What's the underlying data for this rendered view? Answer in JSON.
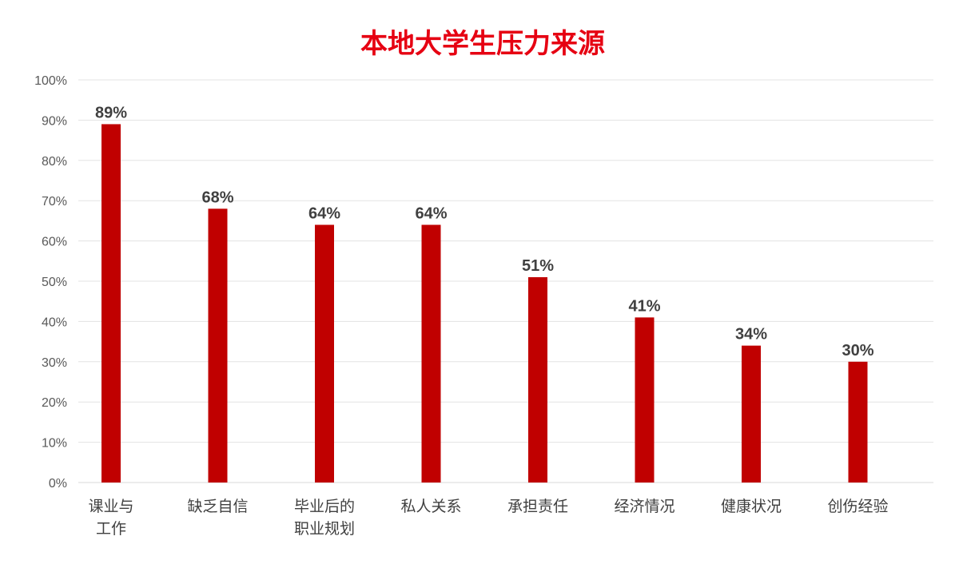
{
  "chart_data": {
    "type": "bar",
    "title": "本地大学生压力来源",
    "categories": [
      [
        "课业与",
        "工作"
      ],
      [
        "缺乏自信"
      ],
      [
        "毕业后的",
        "职业规划"
      ],
      [
        "私人关系"
      ],
      [
        "承担责任"
      ],
      [
        "经济情况"
      ],
      [
        "健康状况"
      ],
      [
        "创伤经验"
      ]
    ],
    "values": [
      89,
      68,
      64,
      64,
      51,
      41,
      34,
      30
    ],
    "data_labels": [
      "89%",
      "68%",
      "64%",
      "64%",
      "51%",
      "41%",
      "34%",
      "30%"
    ],
    "ylim": [
      0,
      100
    ],
    "yticks": [
      0,
      10,
      20,
      30,
      40,
      50,
      60,
      70,
      80,
      90,
      100
    ],
    "ytick_labels": [
      "0%",
      "10%",
      "20%",
      "30%",
      "40%",
      "50%",
      "60%",
      "70%",
      "80%",
      "90%",
      "100%"
    ],
    "grid": true,
    "legend": "none",
    "bar_color": "#c00000",
    "title_color": "#e60012"
  }
}
